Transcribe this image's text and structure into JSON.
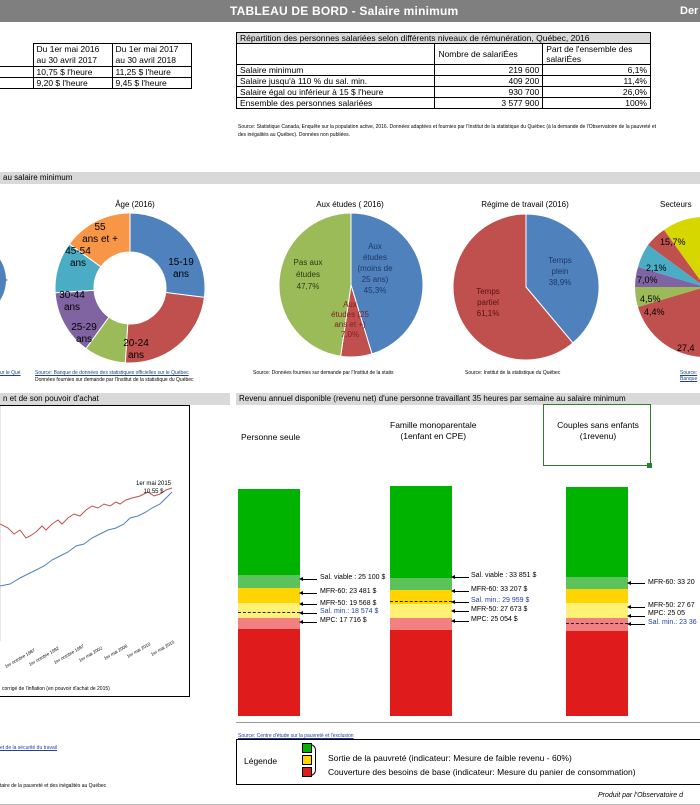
{
  "header": {
    "title": "TABLEAU DE BORD -  Salaire minimum",
    "right": "Der"
  },
  "wage_table": {
    "cols": [
      "Du 1er mai 2016\nau 30 avril 2017",
      "Du 1er mai 2017\nau 30 avril 2018"
    ],
    "col1_l1": "Du 1er mai 2016",
    "col1_l2": "au 30 avril 2017",
    "col2_l1": "Du 1er mai 2017",
    "col2_l2": "au 30 avril 2018",
    "rows": [
      [
        "10,75 $ l'heure",
        "11,25 $ l'heure"
      ],
      [
        "9,20 $ l'heure",
        "9,45 $ l'heure"
      ]
    ]
  },
  "dist_table": {
    "title": "Répartition des personnes salariées selon différents niveaux de rémunération, Québec, 2016",
    "head_count": "Nombre de salariÉes",
    "head_share": "Part de l'ensemble des salariÉes",
    "rows": [
      [
        "Salaire minimum",
        "219 600",
        "6,1%"
      ],
      [
        "Salaire jusqu'à 110 % du sal. min.",
        "409 200",
        "11,4%"
      ],
      [
        "Salaire égal ou inférieur à 15 $ l'heure",
        "930 700",
        "26,0%"
      ],
      [
        "Ensemble des personnes salariées",
        "3 577 900",
        "100%"
      ]
    ],
    "source": "Source: Statistique Canada, Enquête sur la population active, 2016. Données adaptées et fournies par l'Institut de la statistique du Québec (à la demande de l'Observatoire de la pauvreté et des inégalités au Québec). Données non publiées."
  },
  "section2": {
    "title": "au salaire minimum"
  },
  "age_chart": {
    "title": "Âge (2016)",
    "labels": [
      "15-19 ans",
      "20-24 ans",
      "25-29 ans",
      "30-44 ans",
      "45-54 ans",
      "55 ans et +"
    ],
    "colors": [
      "#4f81bd",
      "#c0504d",
      "#9bbb59",
      "#8064a2",
      "#4bacc6",
      "#f79646"
    ],
    "values": [
      27,
      24,
      9,
      14,
      11,
      15
    ],
    "source": "Source: Données fournies sur demande par l'Institut de la statistique du Québec"
  },
  "left_source": {
    "l1": "Source: Banque de données des statistiques officielles sur le Québec",
    "l2": "Données fournies sur demande par l'Institut de la statistique du Québec",
    "l0": "ur le Qué"
  },
  "study_chart": {
    "title": "Aux études ( 2016)",
    "slices": [
      {
        "label": "Aux études (moins de 25 ans) 45,3%",
        "value": 45.3,
        "color": "#4f81bd"
      },
      {
        "label": "Aux études (25 ans et +) 7,0%",
        "value": 7.0,
        "color": "#c0504d"
      },
      {
        "label": "Pas aux études 47,7%",
        "value": 47.7,
        "color": "#9bbb59"
      }
    ],
    "lbl_a": "Aux études (moins de 25 ans)",
    "lbl_a_pct": "45,3%",
    "lbl_b": "Aux études (25 ans et +)",
    "lbl_b_pct": "7,0%",
    "lbl_c": "Pas aux études",
    "lbl_c_pct": "47,7%",
    "source": "Source: Données fournies sur demande par l'Institut de la statis"
  },
  "regime_chart": {
    "title": "Régime de travail (2016)",
    "slices": [
      {
        "label": "Temps plein 38,9%",
        "value": 38.9,
        "color": "#4f81bd"
      },
      {
        "label": "Temps partiel 61,1%",
        "value": 61.1,
        "color": "#c0504d"
      }
    ],
    "lbl_full": "Temps plein",
    "lbl_full_pct": "38,9%",
    "lbl_part": "Temps partiel",
    "lbl_part_pct": "61,1%",
    "source": "Source: Institut de la statistique du Québec"
  },
  "sector_chart": {
    "title": "Secteurs",
    "labels": [
      "15,7%",
      "2,1%",
      "7,0%",
      "4,5%",
      "4,4%",
      "27,4"
    ],
    "source": "Source: Banque"
  },
  "section3": {
    "left_title": "n et de son pouvoir d'achat",
    "right_title": "Revenu annuel disponible (revenu net) d'une personne travaillant 35 heures par semaine au salaire minimum"
  },
  "line_chart": {
    "annotation_l1": "1er mai 2015",
    "annotation_l2": "10,55 $",
    "xticks": [
      "1er octobre 1987",
      "1er octobre 1992",
      "1er octobre 1997",
      "1er mai 2002",
      "1er mai 2006",
      "1er mai 2010",
      "1er mai 2015"
    ],
    "footnote": "corrigé de l'inflation (en pouvoir d'achat de 2015)"
  },
  "households": {
    "titles": [
      "Personne seule",
      "Famille monoparentale (1enfant en CPE)",
      "Couples sans enfants (1revenu)"
    ],
    "t1": "Personne seule",
    "t2a": "Famille monoparentale",
    "t2b": "(1enfant en CPE)",
    "t3a": "Couples sans enfants",
    "t3b": "(1revenu)",
    "h1": [
      {
        "label": "Sal. viable :",
        "value": "25 100 $"
      },
      {
        "label": "MFR-60:",
        "value": "23 481 $"
      },
      {
        "label": "MFR-50:",
        "value": "19 568 $"
      },
      {
        "label": "Sal. min.:",
        "value": "18 574 $"
      },
      {
        "label": "MPC:",
        "value": "17 716 $"
      }
    ],
    "h2": [
      {
        "label": "Sal. viable :",
        "value": "33 851 $"
      },
      {
        "label": "MFR-60:",
        "value": "33 207 $"
      },
      {
        "label": "Sal. min.:",
        "value": "29 959 $"
      },
      {
        "label": "MFR-50:",
        "value": "27 673 $"
      },
      {
        "label": "MPC:",
        "value": "25 054 $"
      }
    ],
    "h3": [
      {
        "label": "MFR-60:",
        "value": "33 20"
      },
      {
        "label": "MFR-50:",
        "value": "27 67"
      },
      {
        "label": "MPC:",
        "value": "25 05"
      },
      {
        "label": "Sal. min.:",
        "value": "23 36"
      }
    ]
  },
  "bottom": {
    "source_right": "Source: Centre d'étude sur la pauvreté et l'exclusion",
    "left1": "et de la sécurité du travail",
    "left2": "taire de la pauvreté et des inégalités au Québec",
    "legend_title": "Légende",
    "legend_1": "Sortie de la pauvreté (indicateur: Mesure de faible revenu - 60%)",
    "legend_2": "Couverture des besoins de base (indicateur: Mesure du panier de consommation)",
    "produced": "Produit par l'Observatoire d"
  }
}
